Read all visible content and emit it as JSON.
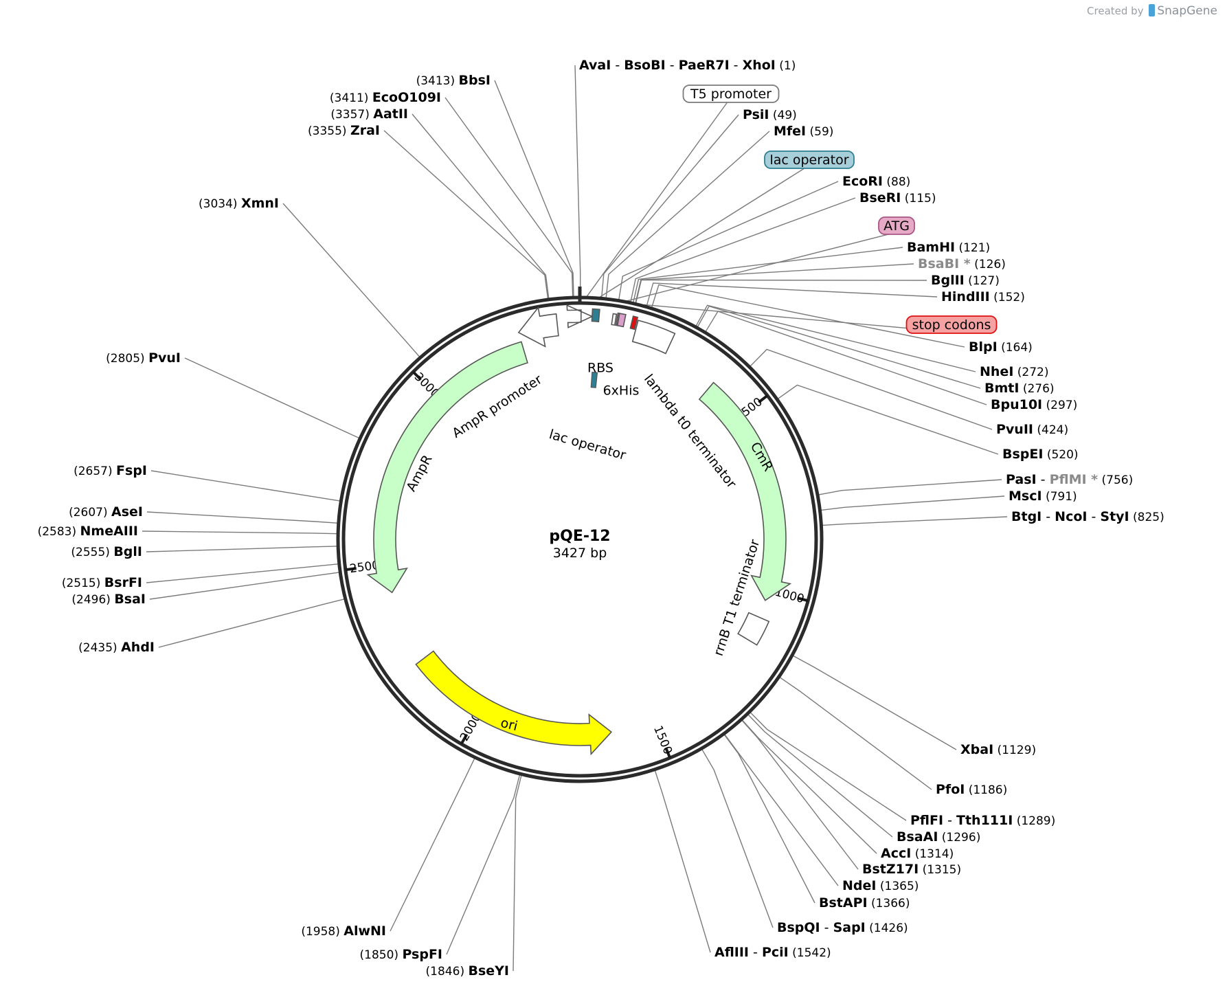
{
  "credit": {
    "prefix": "Created by",
    "brand": "SnapGene"
  },
  "plasmid": {
    "name": "pQE-12",
    "length_label": "3427 bp",
    "length": 3427
  },
  "ticks": [
    {
      "pos": 500,
      "label": "500"
    },
    {
      "pos": 1000,
      "label": "1000"
    },
    {
      "pos": 1500,
      "label": "1500"
    },
    {
      "pos": 2000,
      "label": "2000"
    },
    {
      "pos": 2500,
      "label": "2500"
    },
    {
      "pos": 3000,
      "label": "3000"
    }
  ],
  "features": [
    {
      "name": "T5 promoter",
      "start": 3,
      "end": 30,
      "type": "promoter",
      "color": "#ffffff",
      "label": "T5 promoter",
      "boxed": true
    },
    {
      "name": "lac operator",
      "start": 30,
      "end": 47,
      "type": "box",
      "color": "#2e7f92",
      "label": "lac operator",
      "boxed": true,
      "box_color": "#a6cfda"
    },
    {
      "name": "RBS",
      "start": 80,
      "end": 88,
      "type": "box",
      "color": "#ffffff",
      "label": "RBS"
    },
    {
      "name": "6xHis",
      "start": 95,
      "end": 110,
      "type": "box",
      "color": "#d8a0c8",
      "label": "6xHis"
    },
    {
      "name": "ATG",
      "start": 91,
      "end": 94,
      "type": "box",
      "color": "#e6a0c0",
      "label": "ATG",
      "boxed": true,
      "box_color": "#e6a9c6"
    },
    {
      "name": "stop codons",
      "start": 128,
      "end": 139,
      "type": "box",
      "color": "#e01010",
      "label": "stop codons",
      "boxed": true,
      "box_color": "#f7a2a2"
    },
    {
      "name": "lambda t0 terminator",
      "start": 142,
      "end": 236,
      "type": "box",
      "color": "#ffffff",
      "label": "lambda t0 terminator"
    },
    {
      "name": "CmR",
      "start": 385,
      "end": 1030,
      "type": "arrow",
      "color": "#c8ffc8",
      "label": "CmR"
    },
    {
      "name": "rrnB T1 terminator",
      "start": 1080,
      "end": 1150,
      "type": "box",
      "color": "#ffffff",
      "label": "rrnB T1 terminator"
    },
    {
      "name": "ori",
      "start": 1625,
      "end": 2215,
      "type": "arrow-rev",
      "color": "#ffff00",
      "label": "ori"
    },
    {
      "name": "AmpR",
      "start": 2420,
      "end": 3270,
      "type": "arrow-rev",
      "color": "#c8ffc8",
      "label": "AmpR"
    },
    {
      "name": "AmpR promoter",
      "start": 3270,
      "end": 3370,
      "type": "promoter-rev",
      "color": "#ffffff",
      "label": "AmpR promoter"
    }
  ],
  "enzyme_labels": [
    {
      "parts": [
        [
          "AvaI",
          ""
        ],
        [
          "BsoBI",
          ""
        ],
        [
          "PaeR7I",
          ""
        ],
        [
          "XhoI",
          ""
        ]
      ],
      "pos": "(1)"
    },
    {
      "parts": [
        [
          "PsiI",
          ""
        ]
      ],
      "pos": "(49)"
    },
    {
      "parts": [
        [
          "MfeI",
          ""
        ]
      ],
      "pos": "(59)"
    },
    {
      "parts": [
        [
          "EcoRI",
          ""
        ]
      ],
      "pos": "(88)"
    },
    {
      "parts": [
        [
          "BseRI",
          ""
        ]
      ],
      "pos": "(115)"
    },
    {
      "parts": [
        [
          "BamHI",
          ""
        ]
      ],
      "pos": "(121)"
    },
    {
      "parts": [
        [
          "BsaBI",
          "dim"
        ]
      ],
      "pos": "(126)",
      "star": "*"
    },
    {
      "parts": [
        [
          "BglII",
          ""
        ]
      ],
      "pos": "(127)"
    },
    {
      "parts": [
        [
          "HindIII",
          ""
        ]
      ],
      "pos": "(152)"
    },
    {
      "parts": [
        [
          "BlpI",
          ""
        ]
      ],
      "pos": "(164)"
    },
    {
      "parts": [
        [
          "NheI",
          ""
        ]
      ],
      "pos": "(272)"
    },
    {
      "parts": [
        [
          "BmtI",
          ""
        ]
      ],
      "pos": "(276)"
    },
    {
      "parts": [
        [
          "Bpu10I",
          ""
        ]
      ],
      "pos": "(297)"
    },
    {
      "parts": [
        [
          "PvuII",
          ""
        ]
      ],
      "pos": "(424)"
    },
    {
      "parts": [
        [
          "BspEI",
          ""
        ]
      ],
      "pos": "(520)"
    },
    {
      "parts": [
        [
          "PasI",
          ""
        ],
        [
          "PflMI",
          "dim"
        ]
      ],
      "pos": "(756)",
      "star": "*"
    },
    {
      "parts": [
        [
          "MscI",
          ""
        ]
      ],
      "pos": "(791)"
    },
    {
      "parts": [
        [
          "BtgI",
          ""
        ],
        [
          "NcoI",
          ""
        ],
        [
          "StyI",
          ""
        ]
      ],
      "pos": "(825)"
    },
    {
      "parts": [
        [
          "XbaI",
          ""
        ]
      ],
      "pos": "(1129)"
    },
    {
      "parts": [
        [
          "PfoI",
          ""
        ]
      ],
      "pos": "(1186)"
    },
    {
      "parts": [
        [
          "PflFI",
          ""
        ],
        [
          "Tth111I",
          ""
        ]
      ],
      "pos": "(1289)"
    },
    {
      "parts": [
        [
          "BsaAI",
          ""
        ]
      ],
      "pos": "(1296)"
    },
    {
      "parts": [
        [
          "AccI",
          ""
        ]
      ],
      "pos": "(1314)"
    },
    {
      "parts": [
        [
          "BstZ17I",
          ""
        ]
      ],
      "pos": "(1315)"
    },
    {
      "parts": [
        [
          "NdeI",
          ""
        ]
      ],
      "pos": "(1365)"
    },
    {
      "parts": [
        [
          "BstAPI",
          ""
        ]
      ],
      "pos": "(1366)"
    },
    {
      "parts": [
        [
          "BspQI",
          ""
        ],
        [
          "SapI",
          ""
        ]
      ],
      "pos": "(1426)"
    },
    {
      "parts": [
        [
          "AflIII",
          ""
        ],
        [
          "PciI",
          ""
        ]
      ],
      "pos": "(1542)"
    },
    {
      "parts": [
        [
          "BseYI",
          ""
        ]
      ],
      "pos": "(1846)"
    },
    {
      "parts": [
        [
          "PspFI",
          ""
        ]
      ],
      "pos": "(1850)"
    },
    {
      "parts": [
        [
          "AlwNI",
          ""
        ]
      ],
      "pos": "(1958)"
    },
    {
      "parts": [
        [
          "AhdI",
          ""
        ]
      ],
      "pos": "(2435)"
    },
    {
      "parts": [
        [
          "BsaI",
          ""
        ]
      ],
      "pos": "(2496)"
    },
    {
      "parts": [
        [
          "BsrFI",
          ""
        ]
      ],
      "pos": "(2515)"
    },
    {
      "parts": [
        [
          "BglI",
          ""
        ]
      ],
      "pos": "(2555)"
    },
    {
      "parts": [
        [
          "NmeAIII",
          ""
        ]
      ],
      "pos": "(2583)"
    },
    {
      "parts": [
        [
          "AseI",
          ""
        ]
      ],
      "pos": "(2607)"
    },
    {
      "parts": [
        [
          "FspI",
          ""
        ]
      ],
      "pos": "(2657)"
    },
    {
      "parts": [
        [
          "PvuI",
          ""
        ]
      ],
      "pos": "(2805)"
    },
    {
      "parts": [
        [
          "XmnI",
          ""
        ]
      ],
      "pos": "(3034)"
    },
    {
      "parts": [
        [
          "ZraI",
          ""
        ]
      ],
      "pos": "(3355)"
    },
    {
      "parts": [
        [
          "AatII",
          ""
        ]
      ],
      "pos": "(3357)"
    },
    {
      "parts": [
        [
          "EcoO109I",
          ""
        ]
      ],
      "pos": "(3411)"
    },
    {
      "parts": [
        [
          "BbsI",
          ""
        ]
      ],
      "pos": "(3413)"
    }
  ],
  "feature_tags": [
    {
      "text": "T5 promoter",
      "border": "#7a7a7a",
      "fill": "#ffffff"
    },
    {
      "text": "lac operator",
      "border": "#2e7f92",
      "fill": "#a6cfda"
    },
    {
      "text": "ATG",
      "border": "#a85585",
      "fill": "#e6a9c6"
    },
    {
      "text": "stop codons",
      "border": "#e01010",
      "fill": "#f7a2a2"
    }
  ]
}
